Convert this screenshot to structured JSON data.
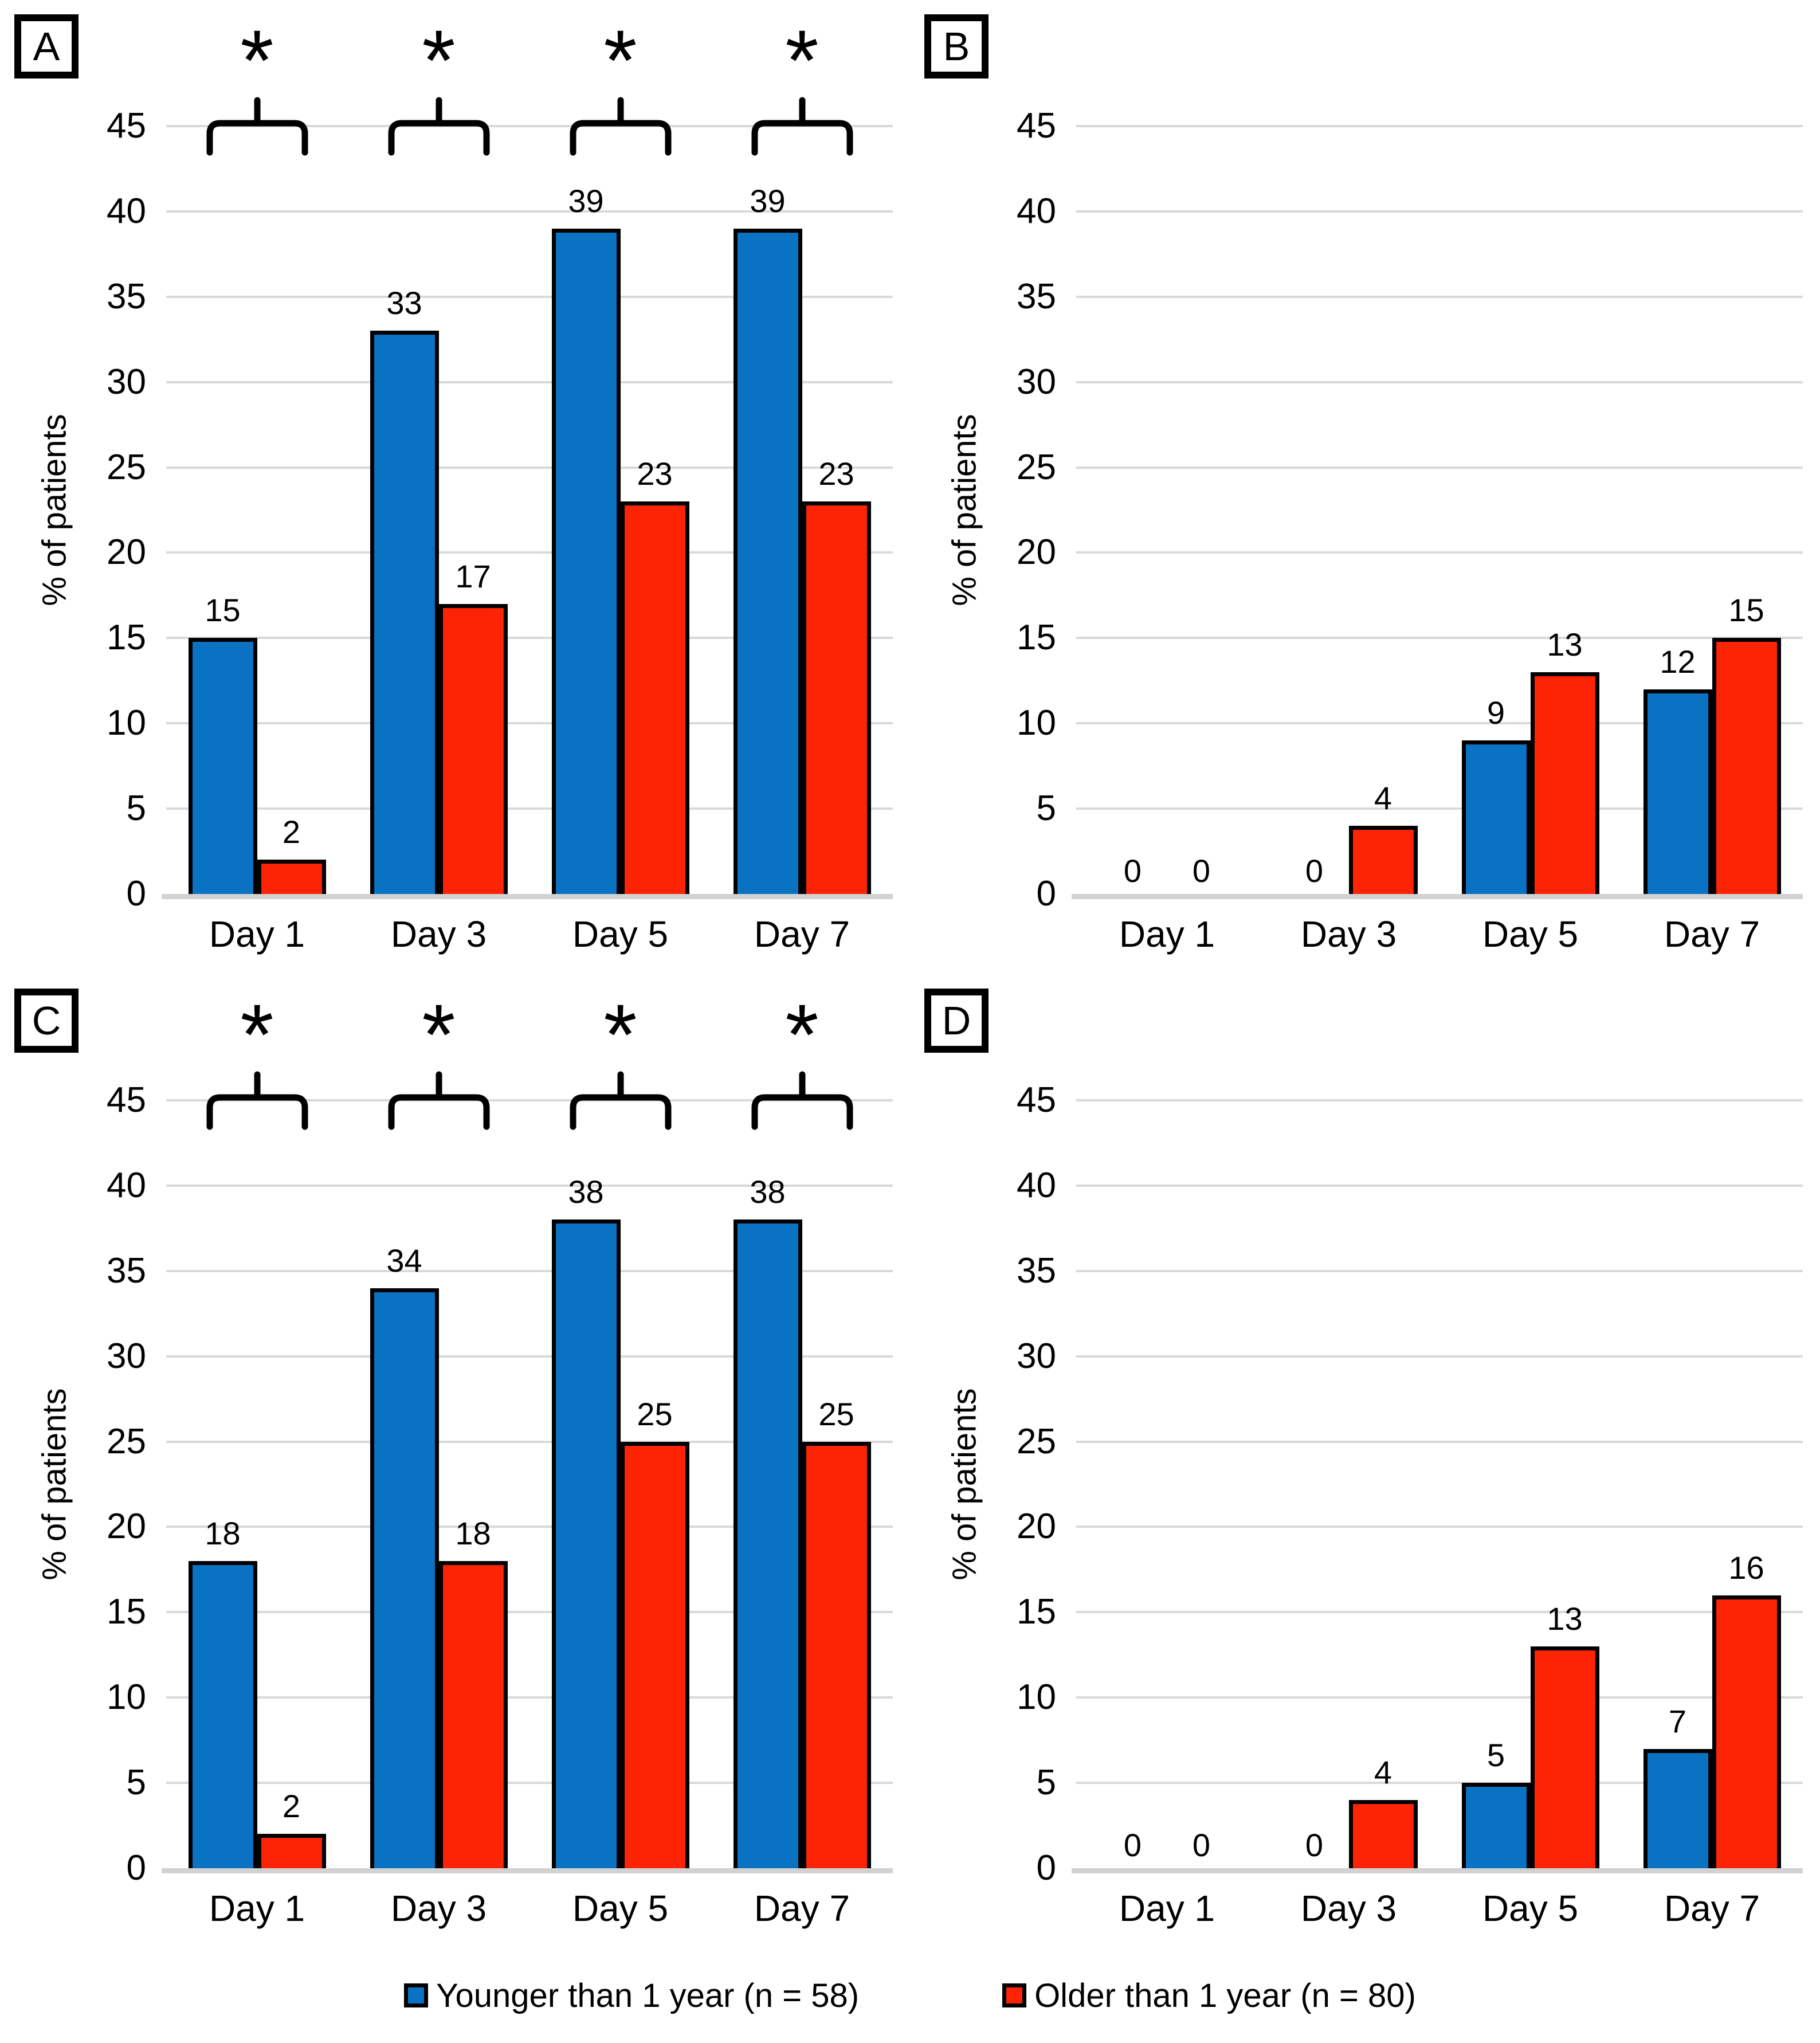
{
  "axis": {
    "ylabel": "% of patients",
    "ymin": 0,
    "ymax": 45,
    "ystep": 5,
    "yticks": [
      0,
      5,
      10,
      15,
      20,
      25,
      30,
      35,
      40,
      45
    ],
    "grid": true,
    "categories": [
      "Day 1",
      "Day 3",
      "Day 5",
      "Day 7"
    ]
  },
  "legend": {
    "position": "bottom-center",
    "items": [
      {
        "label": "Younger than 1 year (n = 58)",
        "color": "#0a72c2",
        "swatch": "blue-square"
      },
      {
        "label": "Older than 1 year (n = 80)",
        "color": "#fd2305",
        "swatch": "red-square"
      }
    ]
  },
  "chart_data": [
    {
      "panel": "A",
      "type": "bar",
      "categories": [
        "Day 1",
        "Day 3",
        "Day 5",
        "Day 7"
      ],
      "series": [
        {
          "name": "Younger than 1 year (n = 58)",
          "color": "#0a72c2",
          "values": [
            15,
            33,
            39,
            39
          ]
        },
        {
          "name": "Older than 1 year (n = 80)",
          "color": "#fd2305",
          "values": [
            2,
            17,
            23,
            23
          ]
        }
      ],
      "significance": [
        true,
        true,
        true,
        true
      ],
      "marker": "*",
      "ylabel": "% of patients",
      "ylim": [
        0,
        45
      ],
      "ystep": 5
    },
    {
      "panel": "B",
      "type": "bar",
      "categories": [
        "Day 1",
        "Day 3",
        "Day 5",
        "Day 7"
      ],
      "series": [
        {
          "name": "Younger than 1 year (n = 58)",
          "color": "#0a72c2",
          "values": [
            0,
            0,
            9,
            12
          ]
        },
        {
          "name": "Older than 1 year (n = 80)",
          "color": "#fd2305",
          "values": [
            0,
            4,
            13,
            15
          ]
        }
      ],
      "significance": [
        false,
        false,
        false,
        false
      ],
      "marker": "*",
      "ylabel": "% of patients",
      "ylim": [
        0,
        45
      ],
      "ystep": 5
    },
    {
      "panel": "C",
      "type": "bar",
      "categories": [
        "Day 1",
        "Day 3",
        "Day 5",
        "Day 7"
      ],
      "series": [
        {
          "name": "Younger than 1 year (n = 58)",
          "color": "#0a72c2",
          "values": [
            18,
            34,
            38,
            38
          ]
        },
        {
          "name": "Older than 1 year (n = 80)",
          "color": "#fd2305",
          "values": [
            2,
            18,
            25,
            25
          ]
        }
      ],
      "significance": [
        true,
        true,
        true,
        true
      ],
      "marker": "*",
      "ylabel": "% of patients",
      "ylim": [
        0,
        45
      ],
      "ystep": 5
    },
    {
      "panel": "D",
      "type": "bar",
      "categories": [
        "Day 1",
        "Day 3",
        "Day 5",
        "Day 7"
      ],
      "series": [
        {
          "name": "Younger than 1 year (n = 58)",
          "color": "#0a72c2",
          "values": [
            0,
            0,
            5,
            7
          ]
        },
        {
          "name": "Older than 1 year (n = 80)",
          "color": "#fd2305",
          "values": [
            0,
            4,
            13,
            16
          ]
        }
      ],
      "significance": [
        false,
        false,
        false,
        false
      ],
      "marker": "*",
      "ylabel": "% of patients",
      "ylim": [
        0,
        45
      ],
      "ystep": 5
    }
  ]
}
